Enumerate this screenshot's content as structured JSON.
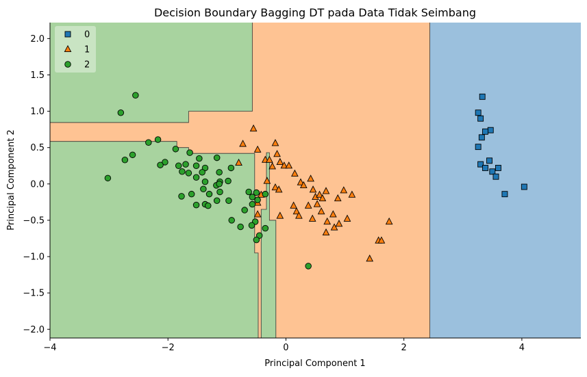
{
  "chart_data": {
    "type": "scatter",
    "title": "Decision Boundary Bagging DT pada Data Tidak Seimbang",
    "xlabel": "Principal Component 1",
    "ylabel": "Principal Component 2",
    "xlim": [
      -4,
      5
    ],
    "ylim": [
      -2.12,
      2.22
    ],
    "x_ticks": [
      -4,
      -2,
      0,
      2,
      4
    ],
    "x_tick_labels": [
      "−4",
      "−2",
      "0",
      "2",
      "4"
    ],
    "y_ticks": [
      -2.0,
      -1.5,
      -1.0,
      -0.5,
      0.0,
      0.5,
      1.0,
      1.5,
      2.0
    ],
    "y_tick_labels": [
      "−2.0",
      "−1.5",
      "−1.0",
      "−0.5",
      "0.0",
      "0.5",
      "1.0",
      "1.5",
      "2.0"
    ],
    "grid": false,
    "legend_position": "top-left",
    "regions": {
      "class_0_color": "#9bc0dd",
      "class_1_color": "#fec393",
      "class_2_color": "#a8d39f",
      "boundary_color": "#333333"
    },
    "series": [
      {
        "name": "0",
        "marker": "square",
        "color": "#1f77b4",
        "points": [
          [
            3.33,
            1.2
          ],
          [
            3.26,
            0.98
          ],
          [
            3.3,
            0.9
          ],
          [
            3.47,
            0.74
          ],
          [
            3.38,
            0.72
          ],
          [
            3.32,
            0.64
          ],
          [
            3.26,
            0.51
          ],
          [
            3.45,
            0.32
          ],
          [
            3.3,
            0.27
          ],
          [
            3.6,
            0.22
          ],
          [
            3.38,
            0.22
          ],
          [
            3.5,
            0.17
          ],
          [
            3.56,
            0.1
          ],
          [
            4.04,
            -0.04
          ],
          [
            3.71,
            -0.14
          ]
        ]
      },
      {
        "name": "1",
        "marker": "triangle",
        "color": "#ff7f0e",
        "points": [
          [
            -0.55,
            0.76
          ],
          [
            -0.73,
            0.55
          ],
          [
            -0.18,
            0.56
          ],
          [
            -0.48,
            0.47
          ],
          [
            -0.15,
            0.41
          ],
          [
            -0.35,
            0.33
          ],
          [
            -0.28,
            0.33
          ],
          [
            -0.1,
            0.3
          ],
          [
            -0.23,
            0.24
          ],
          [
            -0.03,
            0.25
          ],
          [
            0.05,
            0.25
          ],
          [
            -0.8,
            0.29
          ],
          [
            0.42,
            0.07
          ],
          [
            0.25,
            0.02
          ],
          [
            0.15,
            0.14
          ],
          [
            -0.32,
            0.04
          ],
          [
            -0.18,
            -0.05
          ],
          [
            -0.12,
            -0.08
          ],
          [
            0.3,
            -0.02
          ],
          [
            0.46,
            -0.08
          ],
          [
            0.68,
            -0.1
          ],
          [
            0.98,
            -0.09
          ],
          [
            1.12,
            -0.15
          ],
          [
            -0.42,
            -0.15
          ],
          [
            0.5,
            -0.18
          ],
          [
            0.57,
            -0.15
          ],
          [
            0.62,
            -0.2
          ],
          [
            0.88,
            -0.2
          ],
          [
            0.53,
            -0.28
          ],
          [
            -0.48,
            -0.26
          ],
          [
            0.13,
            -0.3
          ],
          [
            0.38,
            -0.3
          ],
          [
            0.18,
            -0.38
          ],
          [
            0.6,
            -0.38
          ],
          [
            0.8,
            -0.42
          ],
          [
            -0.48,
            -0.42
          ],
          [
            -0.1,
            -0.44
          ],
          [
            0.22,
            -0.44
          ],
          [
            0.45,
            -0.48
          ],
          [
            1.04,
            -0.48
          ],
          [
            0.9,
            -0.55
          ],
          [
            0.7,
            -0.52
          ],
          [
            1.75,
            -0.52
          ],
          [
            0.82,
            -0.6
          ],
          [
            0.68,
            -0.67
          ],
          [
            1.57,
            -0.78
          ],
          [
            1.62,
            -0.78
          ],
          [
            1.42,
            -1.03
          ]
        ]
      },
      {
        "name": "2",
        "marker": "circle",
        "color": "#2ca02c",
        "points": [
          [
            -2.55,
            1.22
          ],
          [
            -2.8,
            0.98
          ],
          [
            -2.17,
            0.61
          ],
          [
            -2.33,
            0.57
          ],
          [
            -1.87,
            0.48
          ],
          [
            -1.63,
            0.43
          ],
          [
            -1.47,
            0.35
          ],
          [
            -1.17,
            0.36
          ],
          [
            -2.6,
            0.4
          ],
          [
            -2.73,
            0.33
          ],
          [
            -2.05,
            0.3
          ],
          [
            -2.13,
            0.26
          ],
          [
            -1.82,
            0.25
          ],
          [
            -1.7,
            0.27
          ],
          [
            -1.52,
            0.25
          ],
          [
            -1.37,
            0.22
          ],
          [
            -0.93,
            0.22
          ],
          [
            -1.76,
            0.17
          ],
          [
            -1.65,
            0.15
          ],
          [
            -1.42,
            0.16
          ],
          [
            -1.13,
            0.16
          ],
          [
            -1.52,
            0.09
          ],
          [
            -1.37,
            0.03
          ],
          [
            -1.12,
            0.03
          ],
          [
            -0.98,
            0.04
          ],
          [
            -1.18,
            -0.02
          ],
          [
            -1.13,
            0.0
          ],
          [
            -3.02,
            0.08
          ],
          [
            -1.4,
            -0.07
          ],
          [
            -1.6,
            -0.14
          ],
          [
            -1.77,
            -0.17
          ],
          [
            -1.3,
            -0.14
          ],
          [
            -1.12,
            -0.11
          ],
          [
            -0.63,
            -0.11
          ],
          [
            -0.5,
            -0.12
          ],
          [
            -0.35,
            -0.14
          ],
          [
            -0.57,
            -0.18
          ],
          [
            -0.97,
            -0.23
          ],
          [
            -1.17,
            -0.23
          ],
          [
            -1.52,
            -0.29
          ],
          [
            -1.37,
            -0.28
          ],
          [
            -0.48,
            -0.22
          ],
          [
            -0.57,
            -0.28
          ],
          [
            -1.32,
            -0.3
          ],
          [
            -0.7,
            -0.36
          ],
          [
            -0.92,
            -0.5
          ],
          [
            -0.52,
            -0.52
          ],
          [
            -0.58,
            -0.57
          ],
          [
            -0.77,
            -0.59
          ],
          [
            -0.35,
            -0.61
          ],
          [
            -0.45,
            -0.71
          ],
          [
            -0.5,
            -0.77
          ],
          [
            0.38,
            -1.13
          ]
        ]
      }
    ]
  }
}
